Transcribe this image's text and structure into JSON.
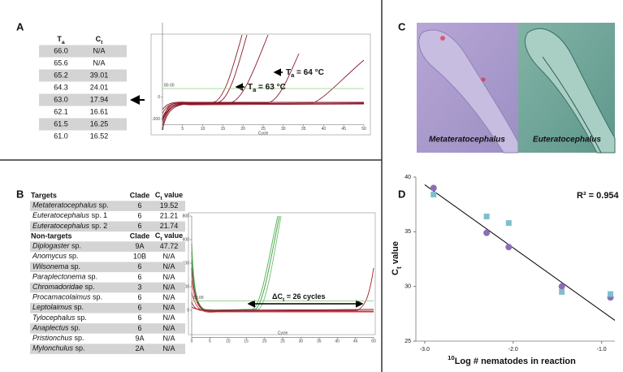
{
  "panel_labels": [
    "A",
    "B",
    "C",
    "D"
  ],
  "panel_a": {
    "table": {
      "headers": [
        {
          "main": "T",
          "sub": "a"
        },
        {
          "main": "C",
          "sub": "t"
        }
      ],
      "rows": [
        [
          "66.0",
          "N/A"
        ],
        [
          "65.6",
          "N/A"
        ],
        [
          "65.2",
          "39.01"
        ],
        [
          "64.3",
          "24.01"
        ],
        [
          "63.0",
          "17.94"
        ],
        [
          "62.1",
          "16.61"
        ],
        [
          "61.5",
          "16.25"
        ],
        [
          "61.0",
          "16.52"
        ]
      ]
    },
    "plot": {
      "xlim": [
        0,
        50
      ],
      "xticks": [
        0,
        5,
        10,
        15,
        20,
        25,
        30,
        35,
        40,
        45,
        50
      ],
      "ylim": [
        -250,
        680
      ],
      "yticks": [
        -200,
        0
      ],
      "threshold": {
        "value": 80,
        "label": "80.00"
      },
      "xlabel": "Cycle",
      "annotations": [
        {
          "main": "T",
          "sub": "a",
          "rest": " = 64 °C"
        },
        {
          "main": "T",
          "sub": "a",
          "rest": " = 63 °C"
        }
      ]
    }
  },
  "panel_b": {
    "targets": {
      "heading": "Targets",
      "columns": [
        "Clade",
        {
          "main": "C",
          "sub": "t",
          "rest": " value"
        }
      ],
      "rows": [
        [
          {
            "genus": "Metateratocephalus",
            "rest": " sp."
          },
          "6",
          "19.52"
        ],
        [
          {
            "genus": "Euteratocephalus",
            "rest": " sp. 1"
          },
          "6",
          "21.21"
        ],
        [
          {
            "genus": "Euteratocephalus",
            "rest": " sp. 2"
          },
          "6",
          "21.74"
        ]
      ]
    },
    "nontargets": {
      "heading": "Non-targets",
      "columns": [
        "Clade",
        {
          "main": "C",
          "sub": "t",
          "rest": " value"
        }
      ],
      "rows": [
        [
          {
            "genus": "Diplogaster",
            "rest": " sp."
          },
          "9A",
          "47.72"
        ],
        [
          {
            "genus": "Anomycus",
            "rest": " sp."
          },
          "10B",
          "N/A"
        ],
        [
          {
            "genus": "Wilsonema",
            "rest": " sp."
          },
          "6",
          "N/A"
        ],
        [
          {
            "genus": "Paraplectonema",
            "rest": " sp."
          },
          "6",
          "N/A"
        ],
        [
          {
            "genus": "Chromadoridae",
            "rest": " sp."
          },
          "3",
          "N/A"
        ],
        [
          {
            "genus": "Procamacolaimus",
            "rest": " sp."
          },
          "6",
          "N/A"
        ],
        [
          {
            "genus": "Leptolaimus",
            "rest": " sp."
          },
          "6",
          "N/A"
        ],
        [
          {
            "genus": "Tylocephalus",
            "rest": " sp."
          },
          "6",
          "N/A"
        ],
        [
          {
            "genus": "Anaplectus",
            "rest": " sp."
          },
          "6",
          "N/A"
        ],
        [
          {
            "genus": "Pristionchus",
            "rest": " sp."
          },
          "9A",
          "N/A"
        ],
        [
          {
            "genus": "Mylonchulus",
            "rest": " sp."
          },
          "2A",
          "N/A"
        ]
      ]
    },
    "plot": {
      "xlim": [
        0,
        50
      ],
      "xticks": [
        0,
        5,
        10,
        15,
        20,
        25,
        30,
        35,
        40,
        45,
        50
      ],
      "ylim": [
        -230,
        800
      ],
      "yticks": [
        0,
        200,
        400,
        600,
        800
      ],
      "threshold": {
        "value": 80,
        "label": "80.00"
      },
      "xlabel": "Cycle",
      "annotation": {
        "main": "ΔC",
        "sub": "t",
        "rest": " = 26 cycles"
      }
    }
  },
  "panel_c": {
    "labels": [
      "Metateratocephalus",
      "Euteratocephalus"
    ]
  },
  "chart_data": {
    "type": "scatter",
    "xlim": [
      -3.1,
      -0.85
    ],
    "ylim": [
      25,
      40
    ],
    "xticks": [
      {
        "value": -3.0,
        "label": "-3.0"
      },
      {
        "value": -2.0,
        "label": "-2.0"
      },
      {
        "value": -1.0,
        "label": "-1.0"
      }
    ],
    "yticks": [
      25,
      30,
      35,
      40
    ],
    "xlabel": {
      "sup": "10",
      "main": "Log # nematodes in reaction"
    },
    "ylabel": {
      "main": "C",
      "sub": "t",
      "rest": " value"
    },
    "annotation": "R² = 0.954",
    "series": [
      {
        "color": "#8e6db5",
        "marker": "circle",
        "x": [
          -2.9,
          -2.3,
          -2.05,
          -1.45,
          -0.9
        ],
        "values": [
          39.0,
          34.9,
          33.6,
          30.0,
          29.0
        ]
      },
      {
        "color": "#7fbfcc",
        "marker": "square",
        "x": [
          -2.9,
          -2.3,
          -2.05,
          -1.45,
          -0.9
        ],
        "values": [
          38.4,
          36.4,
          35.8,
          29.5,
          29.3
        ]
      }
    ],
    "trendline": {
      "color": "#000000",
      "x": [
        -3.0,
        -0.85
      ],
      "values": [
        39.3,
        26.9
      ]
    }
  }
}
